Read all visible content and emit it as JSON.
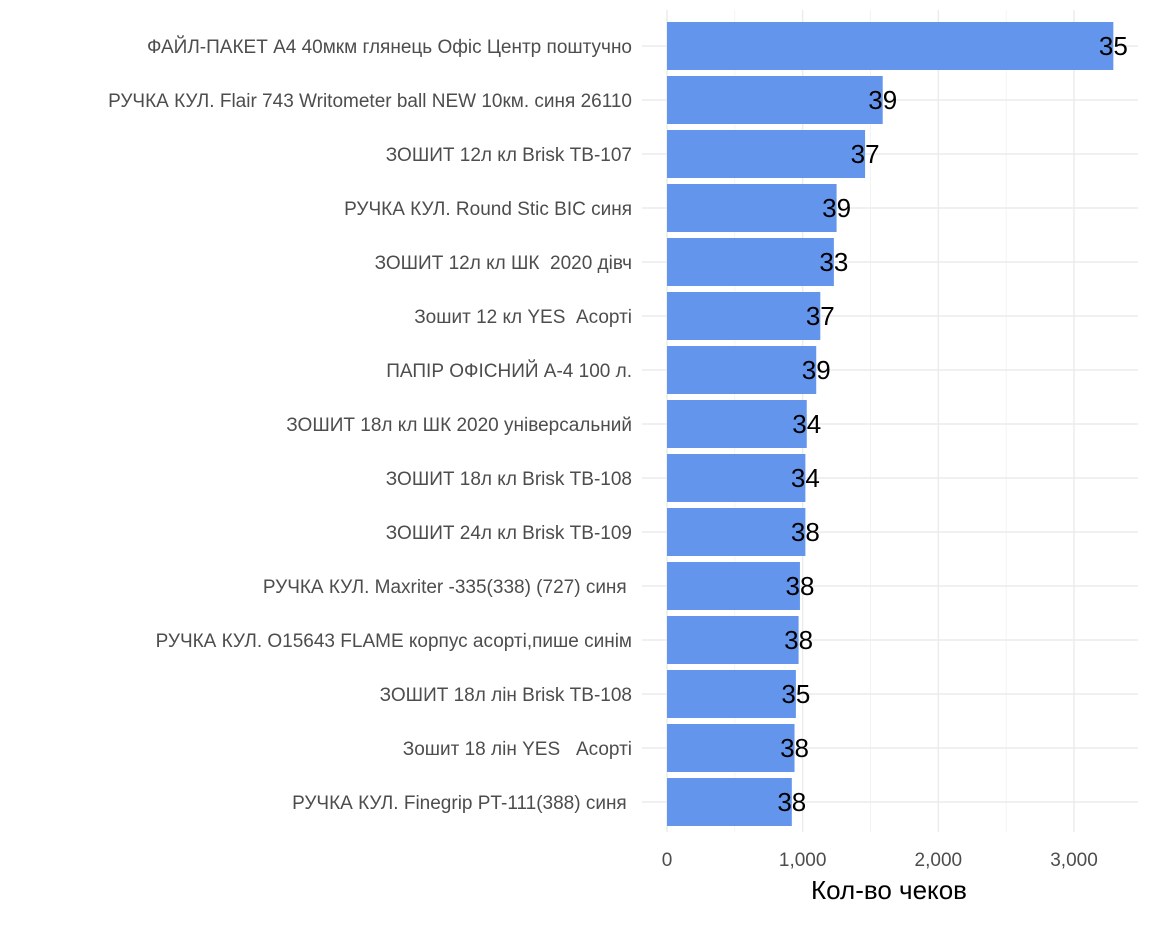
{
  "chart_data": {
    "type": "bar",
    "orientation": "horizontal",
    "categories": [
      "ФАЙЛ-ПАКЕТ А4 40мкм глянець Офіс Центр поштучно",
      "РУЧКА КУЛ. Flair 743 Writometer ball NEW 10км. синя 26110",
      "ЗОШИТ 12л кл Brisk ТВ-107",
      "РУЧКА КУЛ. Round Stic BIC синя",
      "ЗОШИТ 12л кл ШК  2020 дівч",
      "Зошит 12 кл YES  Асорті",
      "ПАПІР ОФІСНИЙ А-4 100 л.",
      "ЗОШИТ 18л кл ШК 2020 універсальний",
      "ЗОШИТ 18л кл Brisk ТВ-108",
      "ЗОШИТ 24л кл Brisk ТВ-109",
      "РУЧКА КУЛ. Maxriter -335(338) (727) синя ",
      "РУЧКА КУЛ. O15643 FLAME корпус асорті,пише синім",
      "ЗОШИТ 18л лін Brisk ТВ-108",
      "Зошит 18 лін YES   Асорті",
      "РУЧКА КУЛ. Finegrip PT-111(388) синя "
    ],
    "values": [
      3290,
      1590,
      1460,
      1250,
      1230,
      1130,
      1100,
      1030,
      1020,
      1020,
      980,
      970,
      950,
      940,
      920
    ],
    "data_labels": [
      "35",
      "39",
      "37",
      "39",
      "33",
      "37",
      "39",
      "34",
      "34",
      "38",
      "38",
      "38",
      "35",
      "38",
      "38"
    ],
    "title": "",
    "xlabel": "Кол-во чеков",
    "ylabel": "",
    "xlim": [
      0,
      3450
    ],
    "xticks": [
      0,
      1000,
      2000,
      3000
    ],
    "xtick_labels": [
      "0",
      "1,000",
      "2,000",
      "3,000"
    ],
    "grid": true,
    "bar_color": "#6495ED"
  }
}
